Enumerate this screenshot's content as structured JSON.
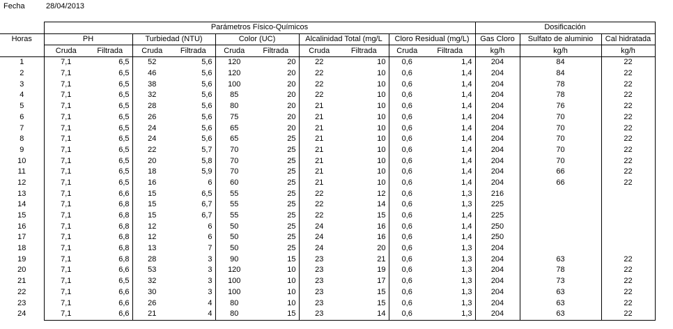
{
  "fecha": {
    "label": "Fecha",
    "value": "28/04/2013"
  },
  "groups": {
    "parametros": "Parámetros Físico-Químicos",
    "dosificacion": "Dosificación"
  },
  "header": {
    "horas": "Horas",
    "ph": "PH",
    "turbiedad": "Turbiedad (NTU)",
    "color": "Color (UC)",
    "alcalinidad": "Alcalinidad Total (mg/L",
    "cloro_residual": "Cloro Residual (mg/L)",
    "gas_cloro": "Gas Cloro",
    "sulfato": "Sulfato de aluminio",
    "cal": "Cal hidratada"
  },
  "subheader": {
    "cruda": "Cruda",
    "filtrada": "Filtrada",
    "unit": "kg/h"
  },
  "rows": [
    [
      "1",
      "7,1",
      "6,5",
      "52",
      "5,6",
      "120",
      "20",
      "22",
      "10",
      "0,6",
      "1,4",
      "204",
      "84",
      "22"
    ],
    [
      "2",
      "7,1",
      "6,5",
      "46",
      "5,6",
      "120",
      "20",
      "22",
      "10",
      "0,6",
      "1,4",
      "204",
      "84",
      "22"
    ],
    [
      "3",
      "7,1",
      "6,5",
      "38",
      "5,6",
      "100",
      "20",
      "22",
      "10",
      "0,6",
      "1,4",
      "204",
      "78",
      "22"
    ],
    [
      "4",
      "7,1",
      "6,5",
      "32",
      "5,6",
      "85",
      "20",
      "22",
      "10",
      "0,6",
      "1,4",
      "204",
      "78",
      "22"
    ],
    [
      "5",
      "7,1",
      "6,5",
      "28",
      "5,6",
      "80",
      "20",
      "21",
      "10",
      "0,6",
      "1,4",
      "204",
      "76",
      "22"
    ],
    [
      "6",
      "7,1",
      "6,5",
      "26",
      "5,6",
      "75",
      "20",
      "21",
      "10",
      "0,6",
      "1,4",
      "204",
      "70",
      "22"
    ],
    [
      "7",
      "7,1",
      "6,5",
      "24",
      "5,6",
      "65",
      "20",
      "21",
      "10",
      "0,6",
      "1,4",
      "204",
      "70",
      "22"
    ],
    [
      "8",
      "7,1",
      "6,5",
      "24",
      "5,6",
      "65",
      "25",
      "21",
      "10",
      "0,6",
      "1,4",
      "204",
      "70",
      "22"
    ],
    [
      "9",
      "7,1",
      "6,5",
      "22",
      "5,7",
      "70",
      "25",
      "21",
      "10",
      "0,6",
      "1,4",
      "204",
      "70",
      "22"
    ],
    [
      "10",
      "7,1",
      "6,5",
      "20",
      "5,8",
      "70",
      "25",
      "21",
      "10",
      "0,6",
      "1,4",
      "204",
      "70",
      "22"
    ],
    [
      "11",
      "7,1",
      "6,5",
      "18",
      "5,9",
      "70",
      "25",
      "21",
      "10",
      "0,6",
      "1,4",
      "204",
      "66",
      "22"
    ],
    [
      "12",
      "7,1",
      "6,5",
      "16",
      "6",
      "60",
      "25",
      "21",
      "10",
      "0,6",
      "1,4",
      "204",
      "66",
      "22"
    ],
    [
      "13",
      "7,1",
      "6,6",
      "15",
      "6,5",
      "55",
      "25",
      "22",
      "12",
      "0,6",
      "1,3",
      "216",
      "",
      ""
    ],
    [
      "14",
      "7,1",
      "6,8",
      "15",
      "6,7",
      "55",
      "25",
      "22",
      "14",
      "0,6",
      "1,3",
      "225",
      "",
      ""
    ],
    [
      "15",
      "7,1",
      "6,8",
      "15",
      "6,7",
      "55",
      "25",
      "22",
      "15",
      "0,6",
      "1,4",
      "225",
      "",
      ""
    ],
    [
      "16",
      "7,1",
      "6,8",
      "12",
      "6",
      "50",
      "25",
      "24",
      "16",
      "0,6",
      "1,4",
      "250",
      "",
      ""
    ],
    [
      "17",
      "7,1",
      "6,8",
      "12",
      "6",
      "50",
      "25",
      "24",
      "16",
      "0,6",
      "1,4",
      "250",
      "",
      ""
    ],
    [
      "18",
      "7,1",
      "6,8",
      "13",
      "7",
      "50",
      "25",
      "24",
      "20",
      "0,6",
      "1,3",
      "204",
      "",
      ""
    ],
    [
      "19",
      "7,1",
      "6,8",
      "28",
      "3",
      "90",
      "15",
      "23",
      "21",
      "0,6",
      "1,3",
      "204",
      "63",
      "22"
    ],
    [
      "20",
      "7,1",
      "6,6",
      "53",
      "3",
      "120",
      "10",
      "23",
      "19",
      "0,6",
      "1,3",
      "204",
      "78",
      "22"
    ],
    [
      "21",
      "7,1",
      "6,5",
      "32",
      "3",
      "100",
      "10",
      "23",
      "17",
      "0,6",
      "1,3",
      "204",
      "73",
      "22"
    ],
    [
      "22",
      "7,1",
      "6,6",
      "30",
      "3",
      "100",
      "10",
      "23",
      "15",
      "0,6",
      "1,3",
      "204",
      "63",
      "22"
    ],
    [
      "23",
      "7,1",
      "6,6",
      "26",
      "4",
      "80",
      "10",
      "23",
      "15",
      "0,6",
      "1,3",
      "204",
      "63",
      "22"
    ],
    [
      "24",
      "7,1",
      "6,6",
      "21",
      "4",
      "80",
      "15",
      "23",
      "14",
      "0,6",
      "1,3",
      "204",
      "63",
      "22"
    ]
  ]
}
